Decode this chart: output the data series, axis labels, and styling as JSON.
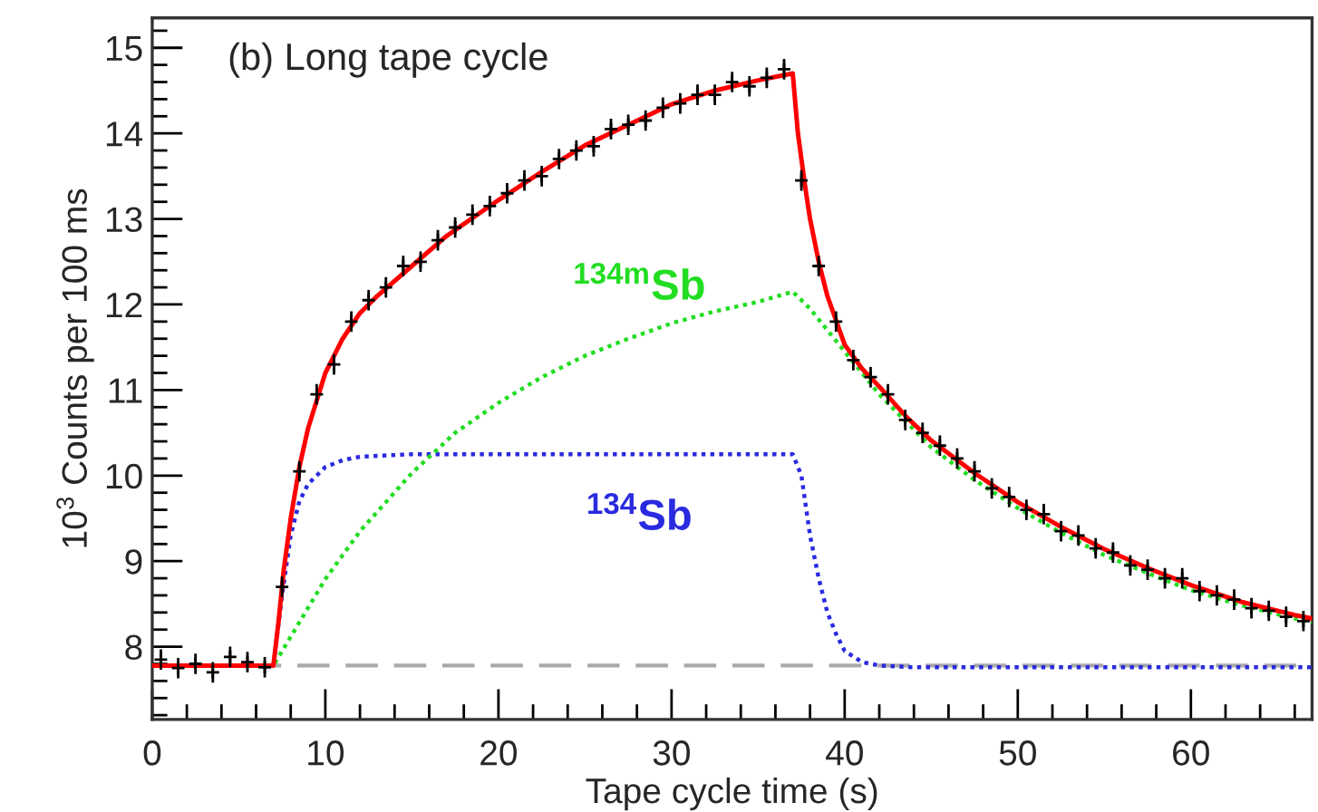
{
  "chart_data": {
    "type": "line",
    "xlabel": "Tape cycle time (s)",
    "ylabel": "10$^{3}$ Counts per 100 ms",
    "annotations": [
      "(b) Long tape cycle"
    ],
    "xlim": [
      0,
      67
    ],
    "ylim": [
      7.15,
      15.35
    ],
    "xticks": [
      0,
      10,
      20,
      30,
      40,
      50,
      60,
      {
        "value": 2,
        "label": null
      },
      {
        "value": 4,
        "label": null
      },
      {
        "value": 6,
        "label": null
      },
      {
        "value": 8,
        "label": null
      },
      {
        "value": 12,
        "label": null
      },
      {
        "value": 14,
        "label": null
      },
      {
        "value": 16,
        "label": null
      },
      {
        "value": 18,
        "label": null
      },
      {
        "value": 22,
        "label": null
      },
      {
        "value": 24,
        "label": null
      },
      {
        "value": 26,
        "label": null
      },
      {
        "value": 28,
        "label": null
      },
      {
        "value": 32,
        "label": null
      },
      {
        "value": 34,
        "label": null
      },
      {
        "value": 36,
        "label": null
      },
      {
        "value": 38,
        "label": null
      },
      {
        "value": 42,
        "label": null
      },
      {
        "value": 44,
        "label": null
      },
      {
        "value": 46,
        "label": null
      },
      {
        "value": 48,
        "label": null
      },
      {
        "value": 52,
        "label": null
      },
      {
        "value": 54,
        "label": null
      },
      {
        "value": 56,
        "label": null
      },
      {
        "value": 58,
        "label": null
      },
      {
        "value": 62,
        "label": null
      },
      {
        "value": 64,
        "label": null
      },
      {
        "value": 66,
        "label": null
      }
    ],
    "yticks": [
      8,
      9,
      10,
      11,
      12,
      13,
      14,
      15,
      {
        "value": 7.2,
        "label": null
      },
      {
        "value": 7.4,
        "label": null
      },
      {
        "value": 7.6,
        "label": null
      },
      {
        "value": 7.8,
        "label": null
      },
      {
        "value": 8.2,
        "label": null
      },
      {
        "value": 8.4,
        "label": null
      },
      {
        "value": 8.6,
        "label": null
      },
      {
        "value": 8.8,
        "label": null
      },
      {
        "value": 9.2,
        "label": null
      },
      {
        "value": 9.4,
        "label": null
      },
      {
        "value": 9.6,
        "label": null
      },
      {
        "value": 9.8,
        "label": null
      },
      {
        "value": 10.2,
        "label": null
      },
      {
        "value": 10.4,
        "label": null
      },
      {
        "value": 10.6,
        "label": null
      },
      {
        "value": 10.8,
        "label": null
      },
      {
        "value": 11.2,
        "label": null
      },
      {
        "value": 11.4,
        "label": null
      },
      {
        "value": 11.6,
        "label": null
      },
      {
        "value": 11.8,
        "label": null
      },
      {
        "value": 12.2,
        "label": null
      },
      {
        "value": 12.4,
        "label": null
      },
      {
        "value": 12.6,
        "label": null
      },
      {
        "value": 12.8,
        "label": null
      },
      {
        "value": 13.2,
        "label": null
      },
      {
        "value": 13.4,
        "label": null
      },
      {
        "value": 13.6,
        "label": null
      },
      {
        "value": 13.8,
        "label": null
      },
      {
        "value": 14.2,
        "label": null
      },
      {
        "value": 14.4,
        "label": null
      },
      {
        "value": 14.6,
        "label": null
      },
      {
        "value": 14.8,
        "label": null
      },
      {
        "value": 15.2,
        "label": null
      }
    ],
    "grid": false,
    "legend": false,
    "series": [
      {
        "color": "#aaaaaa",
        "line_style": "dashed",
        "x": [
          0,
          67
        ],
        "values": [
          7.78,
          7.78
        ]
      },
      {
        "name": "$^{134}$Sb",
        "color": "#2a2ae0",
        "line_style": "dotted",
        "x": [
          0,
          7,
          7.5,
          8,
          8.5,
          9,
          10,
          11,
          12,
          15,
          37,
          37.5,
          38,
          38.5,
          39,
          39.5,
          40,
          41,
          42,
          44,
          67
        ],
        "values": [
          7.78,
          7.78,
          8.6,
          9.3,
          9.7,
          9.9,
          10.1,
          10.18,
          10.22,
          10.25,
          10.25,
          10.0,
          9.3,
          8.8,
          8.4,
          8.15,
          7.95,
          7.82,
          7.78,
          7.76,
          7.76
        ]
      },
      {
        "name": "$^{134m}$Sb",
        "color": "#22dd22",
        "line_style": "dotted",
        "x": [
          0,
          7,
          10,
          12,
          15,
          17.5,
          20,
          22.5,
          25,
          27.5,
          30,
          32.5,
          35,
          37,
          38,
          39,
          40,
          42,
          45,
          47.5,
          50,
          52.5,
          55,
          57.5,
          60,
          63,
          66,
          67
        ],
        "values": [
          7.78,
          7.78,
          8.79,
          9.35,
          10.03,
          10.5,
          10.85,
          11.15,
          11.4,
          11.6,
          11.78,
          11.92,
          12.03,
          12.15,
          11.95,
          11.7,
          11.45,
          10.95,
          10.33,
          9.95,
          9.62,
          9.33,
          9.07,
          8.86,
          8.66,
          8.48,
          8.33,
          8.29
        ]
      },
      {
        "type": "scatter",
        "color": "#000000",
        "marker": "cross",
        "x": [
          0.5,
          1.5,
          2.5,
          3.5,
          4.5,
          5.5,
          6.5,
          7.5,
          8.5,
          9.5,
          10.5,
          11.5,
          12.5,
          13.5,
          14.5,
          15.5,
          16.5,
          17.5,
          18.5,
          19.5,
          20.5,
          21.5,
          22.5,
          23.5,
          24.5,
          25.5,
          26.5,
          27.5,
          28.5,
          29.5,
          30.5,
          31.5,
          32.5,
          33.5,
          34.5,
          35.5,
          36.5,
          37.5,
          38.5,
          39.5,
          40.5,
          41.5,
          42.5,
          43.5,
          44.5,
          45.5,
          46.5,
          47.5,
          48.5,
          49.5,
          50.5,
          51.5,
          52.5,
          53.5,
          54.5,
          55.5,
          56.5,
          57.5,
          58.5,
          59.5,
          60.5,
          61.5,
          62.5,
          63.5,
          64.5,
          65.5,
          66.5
        ],
        "values": [
          7.85,
          7.75,
          7.8,
          7.7,
          7.88,
          7.82,
          7.76,
          8.7,
          10.05,
          10.95,
          11.3,
          11.8,
          12.05,
          12.2,
          12.45,
          12.5,
          12.75,
          12.9,
          13.05,
          13.15,
          13.3,
          13.45,
          13.5,
          13.7,
          13.8,
          13.85,
          14.05,
          14.1,
          14.15,
          14.3,
          14.35,
          14.45,
          14.45,
          14.6,
          14.55,
          14.65,
          14.75,
          13.45,
          12.45,
          11.8,
          11.35,
          11.15,
          10.95,
          10.65,
          10.5,
          10.35,
          10.2,
          10.05,
          9.85,
          9.75,
          9.6,
          9.55,
          9.35,
          9.3,
          9.15,
          9.1,
          8.95,
          8.9,
          8.8,
          8.8,
          8.65,
          8.6,
          8.55,
          8.45,
          8.42,
          8.35,
          8.3
        ],
        "errors": [
          0.12,
          0.12,
          0.12,
          0.12,
          0.12,
          0.12,
          0.12,
          0.12,
          0.12,
          0.12,
          0.12,
          0.12,
          0.12,
          0.12,
          0.12,
          0.12,
          0.12,
          0.12,
          0.12,
          0.12,
          0.12,
          0.12,
          0.12,
          0.12,
          0.12,
          0.12,
          0.12,
          0.12,
          0.12,
          0.12,
          0.12,
          0.12,
          0.12,
          0.12,
          0.12,
          0.12,
          0.12,
          0.12,
          0.12,
          0.12,
          0.12,
          0.12,
          0.12,
          0.12,
          0.12,
          0.12,
          0.12,
          0.12,
          0.12,
          0.12,
          0.12,
          0.12,
          0.12,
          0.12,
          0.12,
          0.12,
          0.12,
          0.12,
          0.12,
          0.12,
          0.12,
          0.12,
          0.12,
          0.12,
          0.12,
          0.12,
          0.12
        ]
      },
      {
        "color": "#ff0000",
        "line_style": "solid",
        "x": [
          0,
          7,
          7.3,
          7.6,
          8,
          8.5,
          9,
          10,
          11,
          12,
          13,
          15,
          17,
          20,
          22.5,
          25,
          27.5,
          30,
          32.5,
          35,
          37,
          37.3,
          37.7,
          38,
          38.5,
          39,
          40,
          41,
          42,
          43.5,
          45,
          47.5,
          50,
          52.5,
          55,
          57.5,
          60,
          63,
          66,
          67
        ],
        "values": [
          7.78,
          7.78,
          8.3,
          8.9,
          9.5,
          10.1,
          10.55,
          11.2,
          11.6,
          11.9,
          12.1,
          12.45,
          12.8,
          13.22,
          13.55,
          13.86,
          14.1,
          14.34,
          14.5,
          14.62,
          14.7,
          14.0,
          13.4,
          13.0,
          12.5,
          12.1,
          11.53,
          11.25,
          11.04,
          10.7,
          10.41,
          10.03,
          9.69,
          9.4,
          9.14,
          8.92,
          8.72,
          8.52,
          8.37,
          8.33
        ]
      }
    ]
  }
}
